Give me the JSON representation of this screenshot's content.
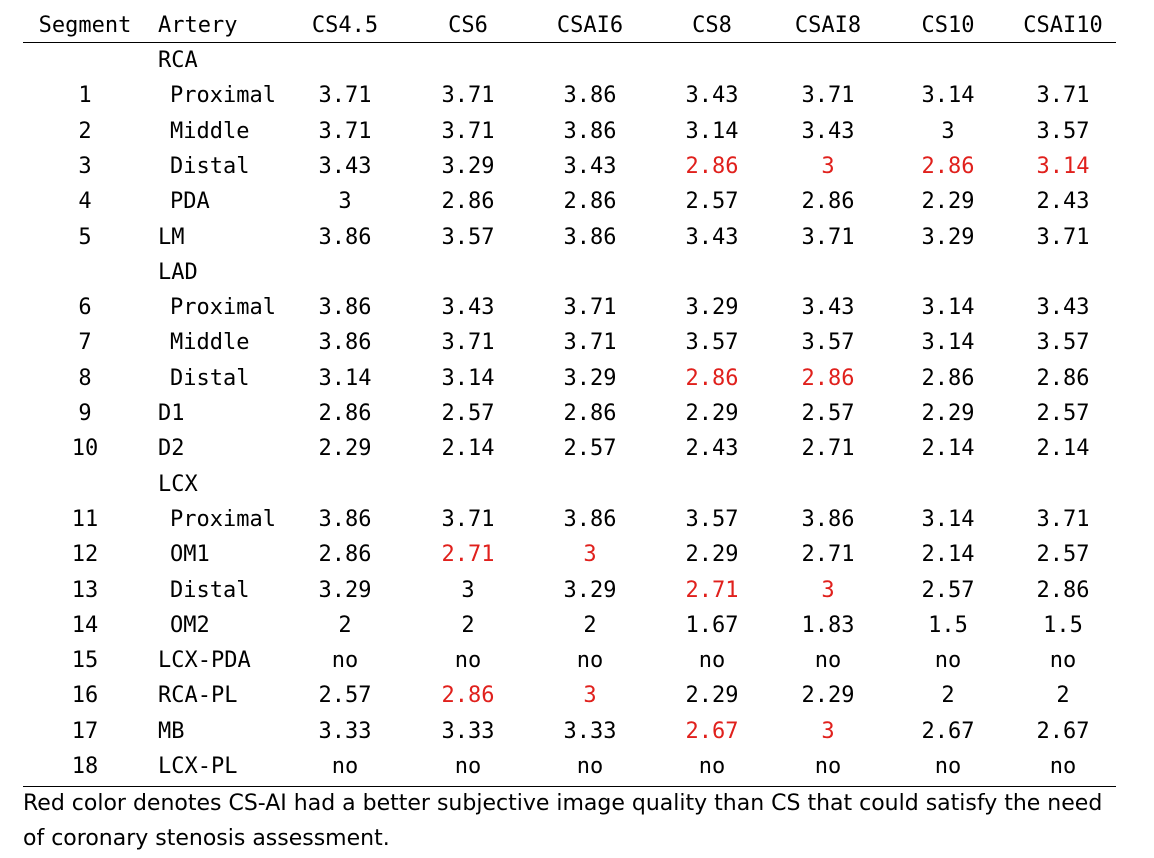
{
  "header": [
    "Segment",
    "Artery",
    "CS4.5",
    "CS6",
    "CSAI6",
    "CS8",
    "CSAI8",
    "CS10",
    "CSAI10"
  ],
  "rows": [
    {
      "seg": "",
      "artery": "RCA",
      "indent": false,
      "vals": [
        "",
        "",
        "",
        "",
        "",
        "",
        ""
      ]
    },
    {
      "seg": "1",
      "artery": "Proximal",
      "indent": true,
      "vals": [
        "3.71",
        "3.71",
        "3.86",
        "3.43",
        "3.71",
        "3.14",
        "3.71"
      ]
    },
    {
      "seg": "2",
      "artery": "Middle",
      "indent": true,
      "vals": [
        "3.71",
        "3.71",
        "3.86",
        "3.14",
        "3.43",
        "3",
        "3.57"
      ]
    },
    {
      "seg": "3",
      "artery": "Distal",
      "indent": true,
      "vals": [
        "3.43",
        "3.29",
        "3.43",
        "2.86",
        "3",
        "2.86",
        "3.14"
      ],
      "red": [
        3,
        4,
        5,
        6
      ]
    },
    {
      "seg": "4",
      "artery": "PDA",
      "indent": true,
      "vals": [
        "3",
        "2.86",
        "2.86",
        "2.57",
        "2.86",
        "2.29",
        "2.43"
      ]
    },
    {
      "seg": "5",
      "artery": "LM",
      "indent": false,
      "vals": [
        "3.86",
        "3.57",
        "3.86",
        "3.43",
        "3.71",
        "3.29",
        "3.71"
      ]
    },
    {
      "seg": "",
      "artery": "LAD",
      "indent": false,
      "vals": [
        "",
        "",
        "",
        "",
        "",
        "",
        ""
      ]
    },
    {
      "seg": "6",
      "artery": "Proximal",
      "indent": true,
      "vals": [
        "3.86",
        "3.43",
        "3.71",
        "3.29",
        "3.43",
        "3.14",
        "3.43"
      ]
    },
    {
      "seg": "7",
      "artery": "Middle",
      "indent": true,
      "vals": [
        "3.86",
        "3.71",
        "3.71",
        "3.57",
        "3.57",
        "3.14",
        "3.57"
      ]
    },
    {
      "seg": "8",
      "artery": "Distal",
      "indent": true,
      "vals": [
        "3.14",
        "3.14",
        "3.29",
        "2.86",
        "2.86",
        "2.86",
        "2.86"
      ],
      "red": [
        3,
        4
      ]
    },
    {
      "seg": "9",
      "artery": "D1",
      "indent": false,
      "vals": [
        "2.86",
        "2.57",
        "2.86",
        "2.29",
        "2.57",
        "2.29",
        "2.57"
      ]
    },
    {
      "seg": "10",
      "artery": "D2",
      "indent": false,
      "vals": [
        "2.29",
        "2.14",
        "2.57",
        "2.43",
        "2.71",
        "2.14",
        "2.14"
      ]
    },
    {
      "seg": "",
      "artery": "LCX",
      "indent": false,
      "vals": [
        "",
        "",
        "",
        "",
        "",
        "",
        ""
      ]
    },
    {
      "seg": "11",
      "artery": "Proximal",
      "indent": true,
      "vals": [
        "3.86",
        "3.71",
        "3.86",
        "3.57",
        "3.86",
        "3.14",
        "3.71"
      ]
    },
    {
      "seg": "12",
      "artery": "OM1",
      "indent": true,
      "vals": [
        "2.86",
        "2.71",
        "3",
        "2.29",
        "2.71",
        "2.14",
        "2.57"
      ],
      "red": [
        1,
        2
      ]
    },
    {
      "seg": "13",
      "artery": "Distal",
      "indent": true,
      "vals": [
        "3.29",
        "3",
        "3.29",
        "2.71",
        "3",
        "2.57",
        "2.86"
      ],
      "red": [
        3,
        4
      ]
    },
    {
      "seg": "14",
      "artery": "OM2",
      "indent": true,
      "vals": [
        "2",
        "2",
        "2",
        "1.67",
        "1.83",
        "1.5",
        "1.5"
      ]
    },
    {
      "seg": "15",
      "artery": "LCX-PDA",
      "indent": false,
      "vals": [
        "no",
        "no",
        "no",
        "no",
        "no",
        "no",
        "no"
      ]
    },
    {
      "seg": "16",
      "artery": "RCA-PL",
      "indent": false,
      "vals": [
        "2.57",
        "2.86",
        "3",
        "2.29",
        "2.29",
        "2",
        "2"
      ],
      "red": [
        1,
        2
      ]
    },
    {
      "seg": "17",
      "artery": "MB",
      "indent": false,
      "vals": [
        "3.33",
        "3.33",
        "3.33",
        "2.67",
        "3",
        "2.67",
        "2.67"
      ],
      "red": [
        3,
        4
      ]
    },
    {
      "seg": "18",
      "artery": "LCX-PL",
      "indent": false,
      "vals": [
        "no",
        "no",
        "no",
        "no",
        "no",
        "no",
        "no"
      ]
    }
  ],
  "footnote": "Red color denotes CS-AI had a better subjective image quality than CS that could satisfy the need of coronary stenosis assessment.",
  "colors": {
    "highlight": "#e0201c",
    "text": "#000000"
  }
}
